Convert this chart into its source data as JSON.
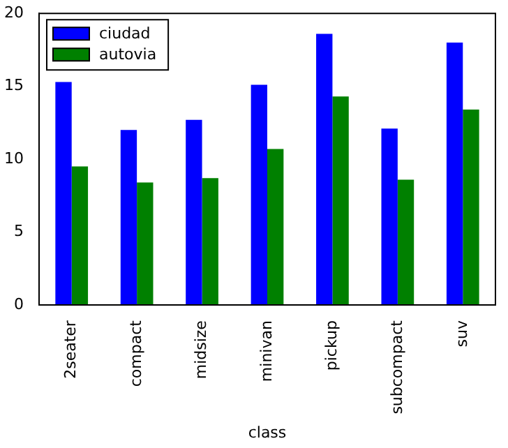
{
  "chart_data": {
    "type": "bar",
    "xlabel": "class",
    "categories": [
      "2seater",
      "compact",
      "midsize",
      "minivan",
      "pickup",
      "subcompact",
      "suv"
    ],
    "series": [
      {
        "name": "ciudad",
        "color": "#0000ff",
        "values": [
          15.3,
          12.0,
          12.7,
          15.1,
          18.6,
          12.1,
          18.0
        ]
      },
      {
        "name": "autovia",
        "color": "#008000",
        "values": [
          9.5,
          8.4,
          8.7,
          10.7,
          14.3,
          8.6,
          13.4
        ]
      }
    ],
    "ylim": [
      0,
      20
    ],
    "yticks": [
      0,
      5,
      10,
      15,
      20
    ],
    "grid": false,
    "legend": "top left"
  }
}
